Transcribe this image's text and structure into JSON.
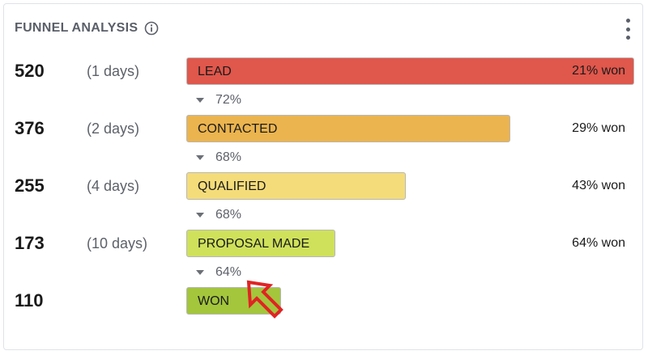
{
  "widget": {
    "title": "FUNNEL ANALYSIS",
    "info_icon": "info-circle-icon",
    "menu_icon": "kebab-menu-icon"
  },
  "stages": [
    {
      "count": "520",
      "days": "(1 days)",
      "label": "LEAD",
      "won": "21% won",
      "fill_fraction": 1.0,
      "color": "#e0574c"
    },
    {
      "count": "376",
      "days": "(2 days)",
      "label": "CONTACTED",
      "won": "29% won",
      "fill_fraction": 0.723,
      "color": "#ebb44e"
    },
    {
      "count": "255",
      "days": "(4 days)",
      "label": "QUALIFIED",
      "won": "43% won",
      "fill_fraction": 0.49,
      "color": "#f4dc7a"
    },
    {
      "count": "173",
      "days": "(10 days)",
      "label": "PROPOSAL MADE",
      "won": "64% won",
      "fill_fraction": 0.333,
      "color": "#cfe15a"
    },
    {
      "count": "110",
      "days": "",
      "label": "WON",
      "won": "",
      "fill_fraction": 0.212,
      "color": "#a3c63c"
    }
  ],
  "conversions": [
    "72%",
    "68%",
    "68%",
    "64%"
  ],
  "annotation": {
    "icon": "red-arrow-icon",
    "color": "#e02424"
  }
}
